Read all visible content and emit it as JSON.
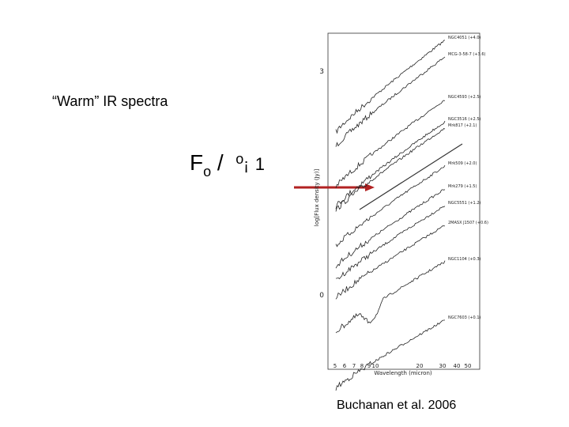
{
  "slide": {
    "title": "“Warm” IR spectra",
    "formula": {
      "main": "F",
      "sub": "o",
      "slash": "/",
      "sup": "o",
      "minus": "¡",
      "power": "1"
    },
    "caption": "Buchanan et al. 2006",
    "figure": {
      "y_label": "log[Flux density (Jy)]",
      "x_label": "Wavelength (micron)",
      "y_ticks": [
        "3",
        "0"
      ],
      "x_ticks": [
        "5",
        "6",
        "7",
        "8",
        "9",
        "10",
        "20",
        "30",
        "40",
        "50"
      ],
      "spectra": [
        "NGC4051 (+4.0)",
        "MCG-3-58-7 (+3.6)",
        "NGC4593 (+2.5)",
        "NGC3516 (+2.5)",
        "Mrk817 (+2.1)",
        "Mrk509 (+2.0)",
        "Mrk279 (+1.5)",
        "NGC5551 (+1.2)",
        "2MASX J1507 (+0.6)",
        "NGC1104 (+0.3)",
        "NGC7603 (+0.1)"
      ]
    }
  }
}
